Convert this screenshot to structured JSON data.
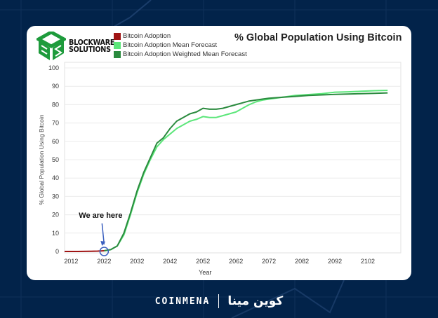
{
  "brand": {
    "line1": "BLOCKWARE",
    "line2": "SOLUTIONS",
    "logo_color": "#1e9b3c"
  },
  "footer": {
    "brand_en": "COINMENA",
    "brand_ar": "كوين مينا"
  },
  "annotation": {
    "text": "We are here",
    "year": 2022,
    "value": 0,
    "color": "#3a5fbf"
  },
  "chart_data": {
    "type": "line",
    "title": "% Global Population Using Bitcoin",
    "xlabel": "Year",
    "ylabel": "% Global Population Using Bitcoin",
    "xlim": [
      2010,
      2112
    ],
    "ylim": [
      0,
      100
    ],
    "xticks": [
      2012,
      2022,
      2032,
      2042,
      2052,
      2062,
      2072,
      2082,
      2092,
      2102
    ],
    "yticks": [
      0,
      10,
      20,
      30,
      40,
      50,
      60,
      70,
      80,
      90,
      100
    ],
    "grid": true,
    "legend_position": "top",
    "series": [
      {
        "name": "Bitcoin Adoption",
        "color": "#a01414",
        "x": [
          2010,
          2014,
          2018,
          2020,
          2022
        ],
        "y": [
          0,
          0,
          0.1,
          0.2,
          0.4
        ]
      },
      {
        "name": "Bitcoin Adoption Mean Forecast",
        "color": "#5ce67a",
        "x": [
          2022,
          2024,
          2026,
          2028,
          2030,
          2032,
          2034,
          2036,
          2038,
          2040,
          2042,
          2044,
          2046,
          2048,
          2050,
          2052,
          2054,
          2056,
          2058,
          2060,
          2062,
          2064,
          2066,
          2068,
          2070,
          2072,
          2076,
          2080,
          2084,
          2088,
          2092,
          2096,
          2100,
          2104,
          2108
        ],
        "y": [
          0.4,
          1,
          3,
          9,
          20,
          32,
          42,
          50,
          57,
          61,
          64,
          67,
          69,
          71,
          72,
          73.5,
          73,
          73,
          74,
          75,
          76,
          78,
          80,
          81.5,
          82.5,
          83,
          84,
          85,
          85.5,
          86,
          86.8,
          87,
          87.3,
          87.6,
          87.8
        ]
      },
      {
        "name": "Bitcoin Adoption Weighted Mean Forecast",
        "color": "#2a8a3e",
        "x": [
          2022,
          2024,
          2026,
          2028,
          2030,
          2032,
          2034,
          2036,
          2038,
          2040,
          2042,
          2044,
          2046,
          2048,
          2050,
          2052,
          2054,
          2056,
          2058,
          2060,
          2062,
          2064,
          2066,
          2068,
          2070,
          2072,
          2076,
          2080,
          2084,
          2088,
          2092,
          2096,
          2100,
          2104,
          2108
        ],
        "y": [
          0.4,
          1,
          3,
          10,
          21,
          33,
          43,
          51,
          59,
          62,
          67,
          71,
          73,
          75,
          76,
          78,
          77.5,
          77.5,
          78,
          79,
          80,
          81,
          82,
          82.5,
          83,
          83.5,
          84,
          84.5,
          85,
          85.3,
          85.6,
          85.8,
          86,
          86.2,
          86.4
        ]
      }
    ]
  }
}
